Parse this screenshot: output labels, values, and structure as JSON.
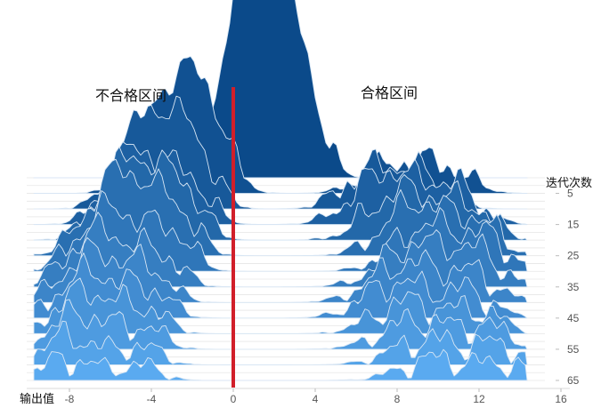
{
  "chart_data": {
    "type": "area",
    "subtype": "ridgeline",
    "xlabel": "输出值",
    "ylabel": "迭代次数",
    "xlim": [
      -10,
      16
    ],
    "x_ticks": [
      "-8",
      "-4",
      "0",
      "4",
      "8",
      "12",
      "16"
    ],
    "y_ticks": [
      "5",
      "15",
      "25",
      "35",
      "45",
      "55",
      "65"
    ],
    "annotations": [
      "不合格区间",
      "合格区间"
    ],
    "threshold_x": 0,
    "colors": {
      "top": "#0b4a8a",
      "bottom": "#5aaaf0",
      "stroke": "#d8e6f4",
      "threshold": "#d11f2a",
      "grid": "#d9d9d9"
    },
    "series": [
      {
        "iteration": 0,
        "peaks": [
          [
            0.2,
            9.0,
            0.9
          ],
          [
            2.0,
            8.6,
            1.1
          ],
          [
            3.4,
            4.2,
            0.9
          ]
        ]
      },
      {
        "iteration": 5,
        "peaks": [
          [
            -3.5,
            4.8,
            1.2
          ],
          [
            -1.5,
            5.4,
            1.1
          ],
          [
            8.0,
            1.6,
            1.5
          ],
          [
            10.5,
            1.2,
            1.2
          ]
        ]
      },
      {
        "iteration": 10,
        "peaks": [
          [
            -4.2,
            5.3,
            1.3
          ],
          [
            -2.0,
            3.4,
            1.0
          ],
          [
            6.8,
            2.2,
            1.4
          ],
          [
            9.3,
            1.6,
            1.2
          ]
        ]
      },
      {
        "iteration": 15,
        "peaks": [
          [
            -4.8,
            4.2,
            1.3
          ],
          [
            -2.2,
            2.4,
            1.0
          ],
          [
            7.5,
            3.0,
            1.6
          ],
          [
            10.8,
            2.0,
            1.2
          ]
        ]
      },
      {
        "iteration": 20,
        "peaks": [
          [
            -5.0,
            4.6,
            1.4
          ],
          [
            -2.5,
            2.6,
            1.0
          ],
          [
            8.3,
            2.8,
            1.6
          ],
          [
            11.5,
            1.8,
            1.2
          ]
        ]
      },
      {
        "iteration": 25,
        "peaks": [
          [
            -5.5,
            4.8,
            1.5
          ],
          [
            -2.8,
            2.2,
            1.0
          ],
          [
            9.0,
            3.0,
            1.6
          ],
          [
            12.0,
            1.6,
            1.1
          ]
        ]
      },
      {
        "iteration": 30,
        "peaks": [
          [
            -6.0,
            3.6,
            1.5
          ],
          [
            -3.0,
            2.0,
            1.0
          ],
          [
            9.5,
            2.6,
            1.6
          ],
          [
            12.5,
            1.6,
            1.1
          ]
        ]
      },
      {
        "iteration": 35,
        "peaks": [
          [
            -6.5,
            3.2,
            1.5
          ],
          [
            -3.5,
            1.6,
            1.0
          ],
          [
            9.0,
            2.4,
            1.7
          ],
          [
            12.0,
            1.6,
            1.2
          ]
        ]
      },
      {
        "iteration": 40,
        "peaks": [
          [
            -6.8,
            2.8,
            1.5
          ],
          [
            -4.0,
            1.6,
            1.0
          ],
          [
            8.5,
            2.2,
            1.7
          ],
          [
            11.8,
            1.4,
            1.2
          ]
        ]
      },
      {
        "iteration": 45,
        "peaks": [
          [
            -7.0,
            2.6,
            1.5
          ],
          [
            -4.0,
            1.4,
            1.0
          ],
          [
            8.0,
            2.0,
            1.6
          ],
          [
            11.5,
            1.4,
            1.2
          ]
        ]
      },
      {
        "iteration": 50,
        "peaks": [
          [
            -7.2,
            2.4,
            1.5
          ],
          [
            -4.2,
            1.2,
            1.0
          ],
          [
            8.5,
            1.8,
            1.6
          ],
          [
            12.0,
            1.2,
            1.2
          ]
        ]
      },
      {
        "iteration": 55,
        "peaks": [
          [
            -7.5,
            2.0,
            1.5
          ],
          [
            -4.3,
            1.1,
            1.0
          ],
          [
            9.0,
            1.6,
            1.7
          ],
          [
            12.5,
            1.1,
            1.2
          ]
        ]
      },
      {
        "iteration": 60,
        "peaks": [
          [
            -8.0,
            1.6,
            1.4
          ],
          [
            -4.5,
            1.0,
            1.0
          ],
          [
            9.5,
            1.4,
            1.7
          ],
          [
            13.0,
            1.0,
            1.2
          ]
        ]
      },
      {
        "iteration": 65,
        "peaks": [
          [
            -8.0,
            1.2,
            1.4
          ],
          [
            -4.5,
            0.8,
            1.0
          ],
          [
            10.0,
            1.2,
            1.7
          ],
          [
            13.5,
            0.8,
            1.2
          ]
        ]
      }
    ]
  }
}
